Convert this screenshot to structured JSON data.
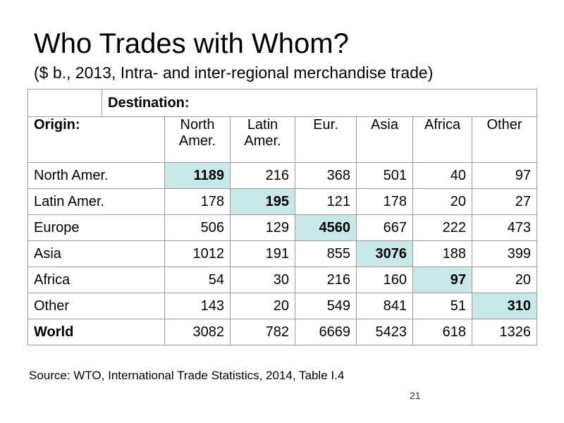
{
  "slide": {
    "title": "Who Trades with Whom?",
    "subtitle": "($ b., 2013, Intra- and inter-regional merchandise trade)",
    "source": "Source:  WTO, International Trade Statistics, 2014, Table I.4",
    "page_number": "21"
  },
  "table": {
    "destination_label": "Destination:",
    "origin_label": "Origin:",
    "columns": [
      [
        "North",
        "Amer."
      ],
      [
        "Latin",
        "Amer."
      ],
      [
        "Eur.",
        ""
      ],
      [
        "Asia",
        ""
      ],
      [
        "Africa",
        ""
      ],
      [
        "Other",
        ""
      ]
    ],
    "rows": [
      {
        "label": "North Amer.",
        "values": [
          "1189",
          "216",
          "368",
          "501",
          "40",
          "97"
        ],
        "highlight_index": 0
      },
      {
        "label": "Latin Amer.",
        "values": [
          "178",
          "195",
          "121",
          "178",
          "20",
          "27"
        ],
        "highlight_index": 1
      },
      {
        "label": "Europe",
        "values": [
          "506",
          "129",
          "4560",
          "667",
          "222",
          "473"
        ],
        "highlight_index": 2
      },
      {
        "label": "Asia",
        "values": [
          "1012",
          "191",
          "855",
          "3076",
          "188",
          "399"
        ],
        "highlight_index": 3
      },
      {
        "label": "Africa",
        "values": [
          "54",
          "30",
          "216",
          "160",
          "97",
          "20"
        ],
        "highlight_index": 4
      },
      {
        "label": "Other",
        "values": [
          "143",
          "20",
          "549",
          "841",
          "51",
          "310"
        ],
        "highlight_index": 5
      },
      {
        "label": "World",
        "values": [
          "3082",
          "782",
          "6669",
          "5423",
          "618",
          "1326"
        ],
        "highlight_index": null
      }
    ],
    "highlight_color": "#c9e8e8"
  }
}
